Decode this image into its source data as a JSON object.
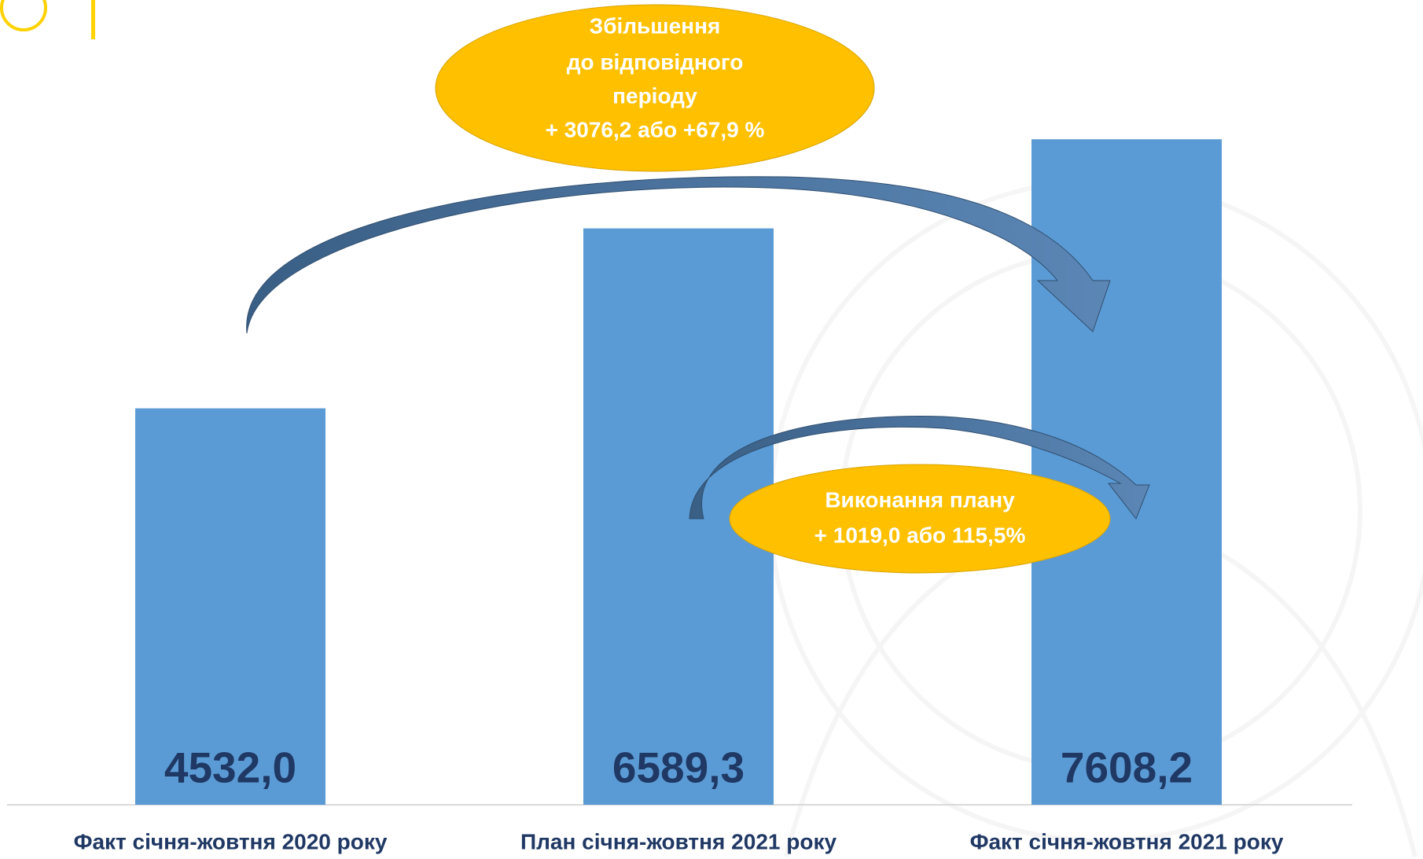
{
  "chart_data": {
    "type": "bar",
    "categories": [
      "Факт січня-жовтня 2020 року",
      "План січня-жовтня 2021 року",
      "Факт січня-жовтня 2021 року"
    ],
    "values": [
      4532.0,
      6589.3,
      7608.2
    ],
    "value_labels": [
      "4532,0",
      "6589,3",
      "7608,2"
    ],
    "color": "#5b9bd5",
    "ylim": [
      0,
      9200
    ],
    "annotations": [
      {
        "lines": [
          "Збільшення",
          "до відповідного",
          "періоду",
          "+ 3076,2 або +67,9 %"
        ],
        "color": "#ffc000"
      },
      {
        "lines": [
          "Виконання плану",
          "+ 1019,0 або 115,5%"
        ],
        "color": "#ffc000"
      }
    ]
  }
}
